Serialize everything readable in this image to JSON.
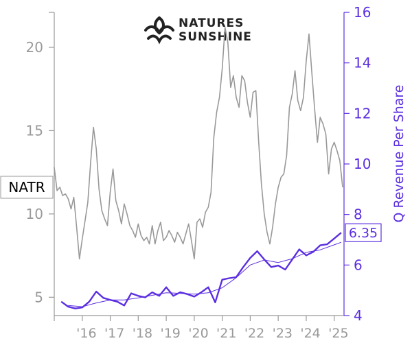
{
  "logo": {
    "line1": "NATURES",
    "line2": "SUNSHINE"
  },
  "chart_data": {
    "type": "line",
    "ticker_label": "NATR",
    "y2_label": "Q Revenue Per Share",
    "last_value_label": "6.35",
    "colors": {
      "price": "#999999",
      "revenue": "#5b2ee0",
      "revenue_trend": "#5b2ee0",
      "axes": "#999999"
    },
    "x_ticks": [
      "'16",
      "'17",
      "'18",
      "'19",
      "'20",
      "'21",
      "'22",
      "'23",
      "'24",
      "'25"
    ],
    "y_left": {
      "ticks": [
        5,
        10,
        15,
        20
      ],
      "range": [
        3.9,
        22.1
      ]
    },
    "y_right": {
      "ticks": [
        4,
        6,
        8,
        10,
        12,
        14,
        16
      ],
      "range": [
        4,
        16
      ]
    },
    "x_range": [
      2015.0,
      2025.35
    ],
    "series": [
      {
        "axis": "left",
        "x": [
          2015.0,
          2015.1,
          2015.2,
          2015.3,
          2015.4,
          2015.5,
          2015.6,
          2015.7,
          2015.8,
          2015.9,
          2016.0,
          2016.1,
          2016.2,
          2016.3,
          2016.4,
          2016.5,
          2016.6,
          2016.7,
          2016.8,
          2016.9,
          2017.0,
          2017.1,
          2017.2,
          2017.3,
          2017.4,
          2017.5,
          2017.6,
          2017.7,
          2017.8,
          2017.9,
          2018.0,
          2018.1,
          2018.2,
          2018.3,
          2018.4,
          2018.5,
          2018.6,
          2018.7,
          2018.8,
          2018.9,
          2019.0,
          2019.1,
          2019.2,
          2019.3,
          2019.4,
          2019.5,
          2019.6,
          2019.7,
          2019.8,
          2019.9,
          2020.0,
          2020.1,
          2020.2,
          2020.3,
          2020.4,
          2020.5,
          2020.6,
          2020.7,
          2020.8,
          2020.9,
          2021.0,
          2021.1,
          2021.2,
          2021.3,
          2021.4,
          2021.5,
          2021.6,
          2021.7,
          2021.8,
          2021.9,
          2022.0,
          2022.1,
          2022.2,
          2022.3,
          2022.4,
          2022.5,
          2022.6,
          2022.7,
          2022.8,
          2022.9,
          2023.0,
          2023.1,
          2023.2,
          2023.3,
          2023.4,
          2023.5,
          2023.6,
          2023.7,
          2023.8,
          2023.9,
          2024.0,
          2024.1,
          2024.2,
          2024.3,
          2024.4,
          2024.5,
          2024.6,
          2024.7,
          2024.8,
          2024.9,
          2025.0,
          2025.1,
          2025.2,
          2025.3
        ],
        "values": [
          12.8,
          11.4,
          11.6,
          11.1,
          11.2,
          10.9,
          10.3,
          11.0,
          9.2,
          7.3,
          8.5,
          9.6,
          10.7,
          13.1,
          15.2,
          13.9,
          11.5,
          10.2,
          9.7,
          9.3,
          11.3,
          12.7,
          10.8,
          10.2,
          9.4,
          10.6,
          10.0,
          9.3,
          9.0,
          8.6,
          9.4,
          8.7,
          8.4,
          8.6,
          8.2,
          9.3,
          8.2,
          9.0,
          9.5,
          8.4,
          8.6,
          9.0,
          8.7,
          8.3,
          8.9,
          8.6,
          8.2,
          8.8,
          9.4,
          8.4,
          7.3,
          9.5,
          9.7,
          9.2,
          10.1,
          10.4,
          11.3,
          14.6,
          16.1,
          17.0,
          18.7,
          21.2,
          20.3,
          17.6,
          18.3,
          17.0,
          16.4,
          18.3,
          18.0,
          16.7,
          15.8,
          17.3,
          17.4,
          14.4,
          11.8,
          10.0,
          8.9,
          8.2,
          9.2,
          10.6,
          11.6,
          12.2,
          12.4,
          13.5,
          16.4,
          17.2,
          18.6,
          16.8,
          16.2,
          17.0,
          19.2,
          20.8,
          18.5,
          16.3,
          14.3,
          15.8,
          15.4,
          14.8,
          12.4,
          13.9,
          14.3,
          13.8,
          13.2,
          11.6
        ]
      },
      {
        "axis": "right",
        "x": [
          2015.25,
          2015.5,
          2015.75,
          2016.0,
          2016.25,
          2016.5,
          2016.75,
          2017.0,
          2017.25,
          2017.5,
          2017.75,
          2018.0,
          2018.25,
          2018.5,
          2018.75,
          2019.0,
          2019.25,
          2019.5,
          2019.75,
          2020.0,
          2020.25,
          2020.5,
          2020.75,
          2021.0,
          2021.25,
          2021.5,
          2021.75,
          2022.0,
          2022.25,
          2022.5,
          2022.75,
          2023.0,
          2023.25,
          2023.5,
          2023.75,
          2024.0,
          2024.25,
          2024.5,
          2024.75,
          2025.0,
          2025.25
        ],
        "values": [
          4.55,
          4.35,
          4.28,
          4.32,
          4.55,
          4.95,
          4.7,
          4.62,
          4.55,
          4.4,
          4.88,
          4.78,
          4.72,
          4.92,
          4.78,
          5.12,
          4.78,
          4.92,
          4.85,
          4.75,
          4.92,
          5.12,
          4.52,
          5.42,
          5.48,
          5.52,
          5.92,
          6.28,
          6.55,
          6.22,
          5.92,
          5.98,
          5.82,
          6.22,
          6.62,
          6.38,
          6.52,
          6.78,
          6.82,
          7.05,
          7.28
        ]
      },
      {
        "axis": "right",
        "x": [
          2015.5,
          2016.0,
          2016.5,
          2017.0,
          2017.5,
          2018.0,
          2018.5,
          2019.0,
          2019.5,
          2020.0,
          2020.5,
          2021.0,
          2021.5,
          2022.0,
          2022.5,
          2023.0,
          2023.5,
          2024.0,
          2024.5,
          2025.0,
          2025.25
        ],
        "values": [
          4.4,
          4.35,
          4.5,
          4.62,
          4.62,
          4.7,
          4.8,
          4.9,
          4.88,
          4.85,
          4.9,
          5.1,
          5.5,
          6.0,
          6.2,
          6.1,
          6.25,
          6.5,
          6.6,
          6.8,
          6.9
        ]
      }
    ]
  }
}
